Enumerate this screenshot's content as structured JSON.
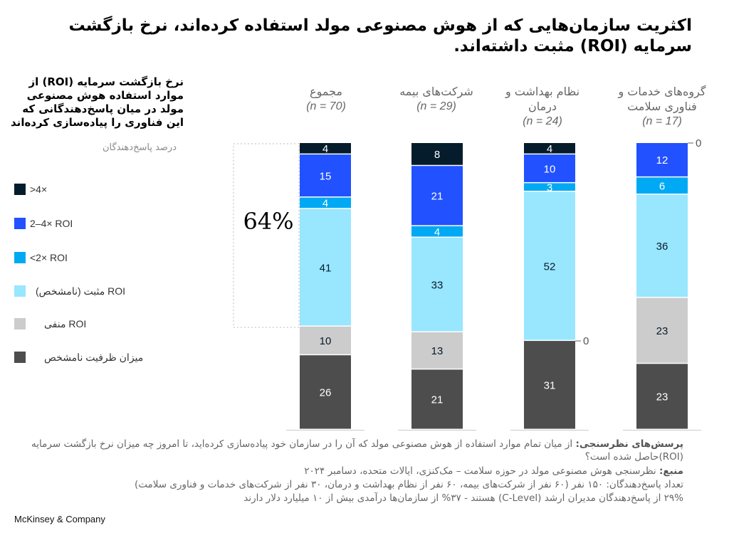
{
  "title": "اکثریت سازمان‌هایی که از هوش مصنوعی مولد استفاده کرده‌اند، نرخ بازگشت سرمایه (ROI) مثبت داشته‌اند.",
  "subtitle": "نرخ بازگشت سرمایه (ROI) از موارد استفاده هوش مصنوعی مولد در میان پاسخ‌دهندگانی که این فناوری را پیاده‌سازی کرده‌اند",
  "unit_label": "درصد پاسخ‌دهندگان",
  "legend": [
    {
      "label": ">4×",
      "color": "#051c2c"
    },
    {
      "label": "2–4× ROI",
      "color": "#2251ff"
    },
    {
      "label": "<2× ROI",
      "color": "#00a9f4"
    },
    {
      "label": "ROI مثبت (نامشخص)",
      "color": "#99e6ff"
    },
    {
      "label": "ROI منفی",
      "color": "#cccccc"
    },
    {
      "label": "میزان ظرفیت نامشخص",
      "color": "#4d4d4d"
    }
  ],
  "annotation": {
    "highlight_pct": "64%"
  },
  "chart_data": {
    "type": "bar",
    "stacked": true,
    "title": "نرخ بازگشت سرمایه (ROI) از موارد استفاده هوش مصنوعی مولد",
    "ylabel": "درصد پاسخ‌دهندگان",
    "ylim": [
      0,
      100
    ],
    "categories": [
      {
        "name": "مجموع",
        "n": "(n = 70)"
      },
      {
        "name": "شرکت‌های بیمه",
        "n": "(n = 29)"
      },
      {
        "name": "نظام بهداشت و درمان",
        "n": "(n = 24)"
      },
      {
        "name": "گروه‌های خدمات و فناوری سلامت",
        "n": "(n = 17)"
      }
    ],
    "series": [
      {
        "name": "میزان ظرفیت نامشخص",
        "color": "#4d4d4d",
        "text_color": "#ffffff",
        "values": [
          26,
          21,
          31,
          23
        ]
      },
      {
        "name": "ROI منفی",
        "color": "#cccccc",
        "text_color": "#051c2c",
        "values": [
          10,
          13,
          0,
          23
        ]
      },
      {
        "name": "ROI مثبت (نامشخص)",
        "color": "#99e6ff",
        "text_color": "#051c2c",
        "values": [
          41,
          33,
          52,
          36
        ]
      },
      {
        "name": "<2× ROI",
        "color": "#00a9f4",
        "text_color": "#ffffff",
        "values": [
          4,
          4,
          3,
          6
        ]
      },
      {
        "name": "2–4× ROI",
        "color": "#2251ff",
        "text_color": "#ffffff",
        "values": [
          15,
          21,
          10,
          12
        ]
      },
      {
        "name": ">4×",
        "color": "#051c2c",
        "text_color": "#ffffff",
        "values": [
          4,
          8,
          4,
          0
        ]
      }
    ],
    "zero_labels": "0"
  },
  "footnotes": {
    "question_label": "پرسش‌های نظرسنجی:",
    "question_text": " از میان تمام موارد استفاده از هوش مصنوعی مولد که آن را در سازمان خود پیاده‌سازی کرده‌اید، تا امروز چه میزان نرخ بازگشت سرمایه (ROI)حاصل شده است؟",
    "source_label": "منبع:",
    "source_text": " نظرسنجی هوش مصنوعی مولد در حوزه سلامت – مک‌کنزی، ایالات متحده، دسامبر ۲۰۲۴",
    "respondents": "تعداد پاسخ‌دهندگان: ۱۵۰ نفر (۶۰ نفر از شرکت‌های بیمه، ۶۰ نفر از نظام بهداشت و درمان، ۳۰ نفر از شرکت‌های خدمات و فناوری سلامت)",
    "stats": "۲۹% از پاسخ‌دهندگان مدیران ارشد (C-Level) هستند - ۳۷% از سازمان‌ها درآمدی بیش از ۱۰ میلیارد دلار دارند"
  },
  "brand": "McKinsey & Company"
}
